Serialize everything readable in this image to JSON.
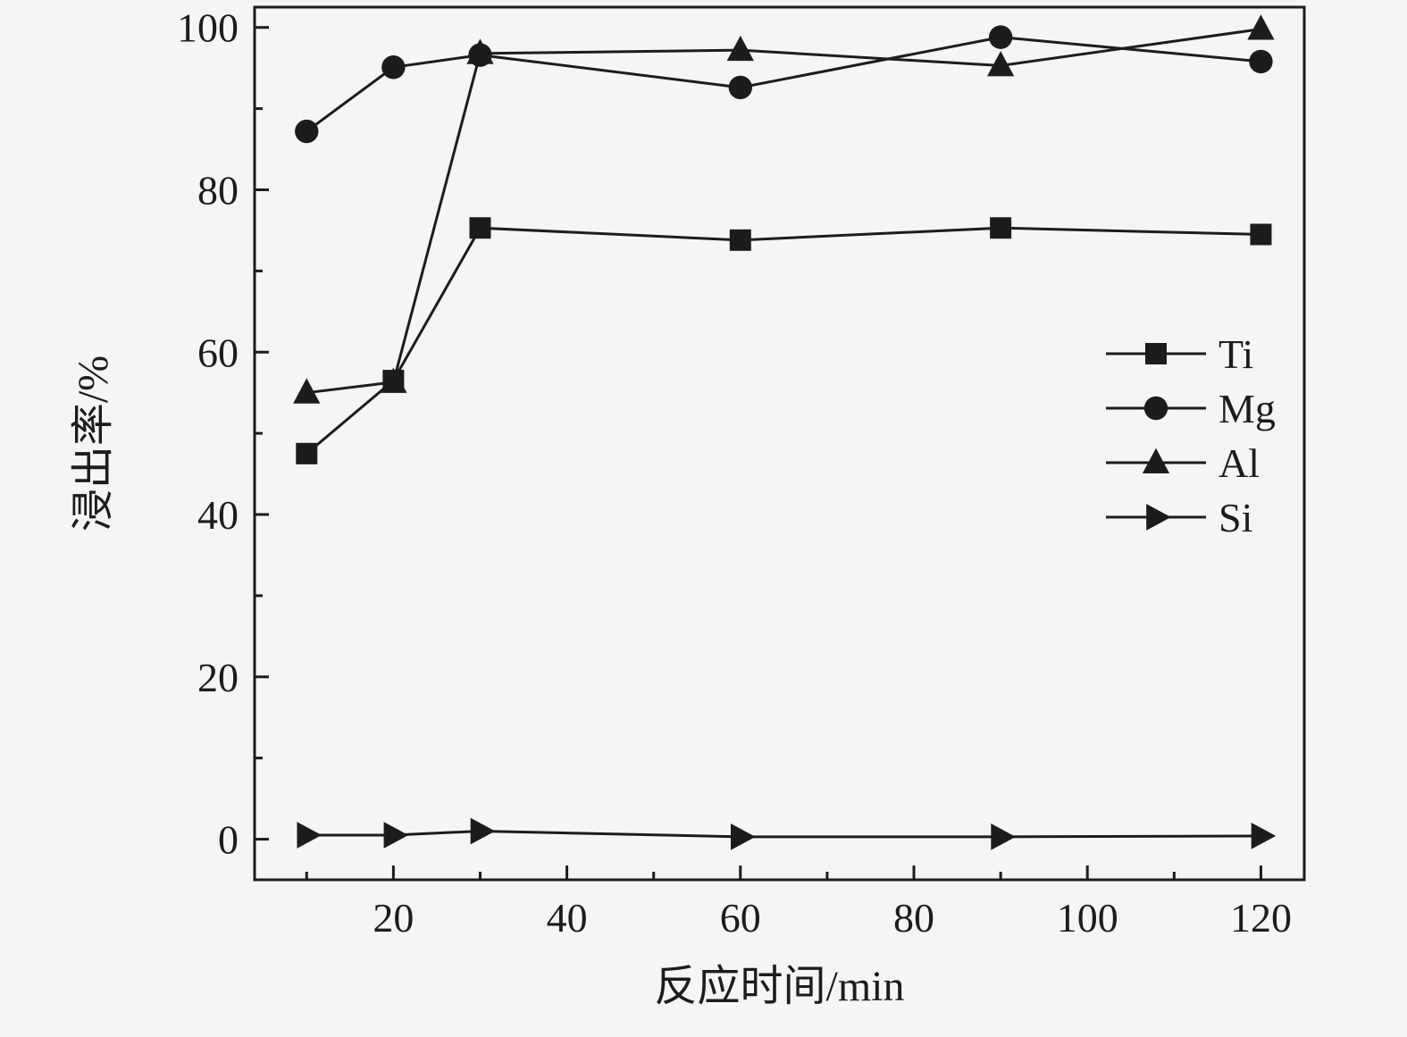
{
  "chart_data": {
    "type": "line",
    "title": "",
    "xlabel": "反应时间/min",
    "ylabel": "浸出率/%",
    "x": [
      10,
      20,
      30,
      60,
      90,
      120
    ],
    "series": [
      {
        "name": "Ti",
        "marker": "square",
        "values": [
          47.5,
          56.5,
          75.3,
          73.8,
          75.3,
          74.5
        ]
      },
      {
        "name": "Mg",
        "marker": "circle",
        "values": [
          87.2,
          95.1,
          96.6,
          92.6,
          98.8,
          95.8
        ]
      },
      {
        "name": "Al",
        "marker": "triangle-up",
        "values": [
          55.0,
          56.3,
          96.8,
          97.2,
          95.3,
          99.8
        ]
      },
      {
        "name": "Si",
        "marker": "triangle-right",
        "values": [
          0.5,
          0.5,
          1.0,
          0.3,
          0.3,
          0.4
        ]
      }
    ],
    "xlim": [
      4,
      125
    ],
    "ylim": [
      -5,
      102.5
    ],
    "xticks": [
      20,
      40,
      60,
      80,
      100,
      120
    ],
    "yticks": [
      0,
      20,
      40,
      60,
      80,
      100
    ],
    "x_minor_ticks": [
      10,
      30,
      50,
      70,
      90,
      110
    ],
    "y_minor_ticks": [
      10,
      30,
      50,
      70,
      90
    ],
    "grid": false,
    "legend_position": "right-middle",
    "legend_entries": [
      "Ti",
      "Mg",
      "Al",
      "Si"
    ],
    "line_color": "#1c1c1c",
    "background_color": "#f5f5f5"
  }
}
